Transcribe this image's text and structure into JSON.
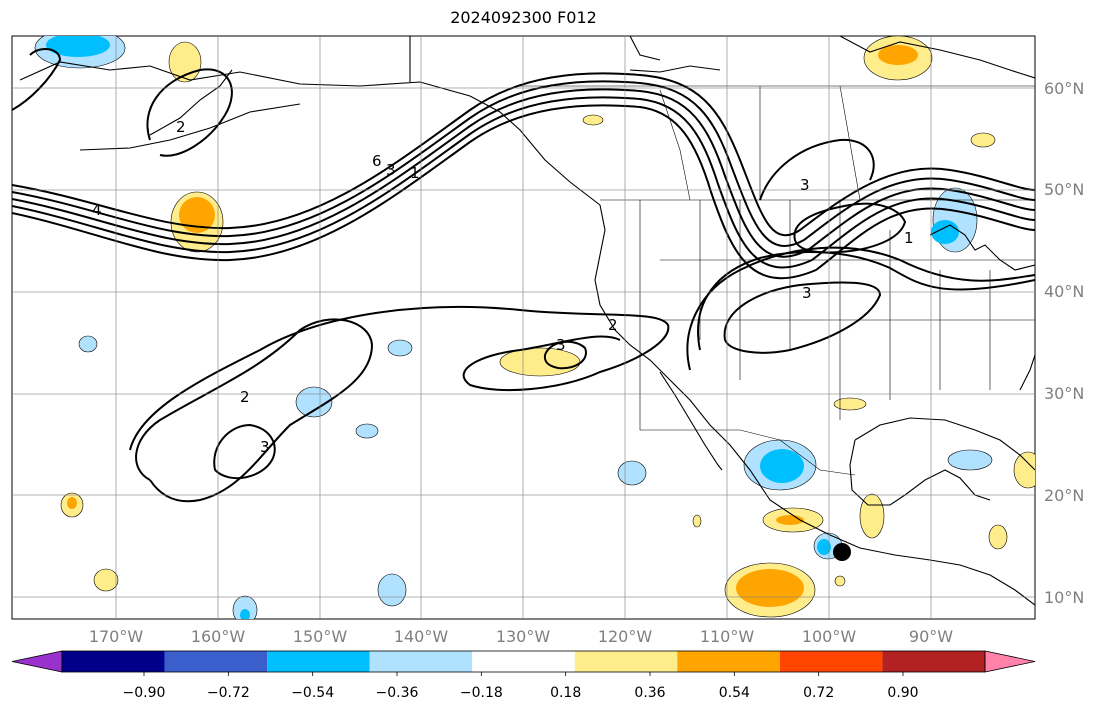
{
  "title": "2024092300 F012",
  "map": {
    "lat_labels": [
      "60°N",
      "50°N",
      "40°N",
      "30°N",
      "20°N",
      "10°N"
    ],
    "lon_labels": [
      "170°W",
      "160°W",
      "150°W",
      "140°W",
      "130°W",
      "120°W",
      "110°W",
      "100°W",
      "90°W"
    ],
    "contour_labels": [
      "4",
      "6",
      "1",
      "3",
      "2",
      "3",
      "2",
      "3",
      "3",
      "2",
      "1",
      "3"
    ],
    "marker": "storm-center-dot"
  },
  "colorbar": {
    "colors": [
      "#9932cc",
      "#00008b",
      "#3a5fcd",
      "#00bfff",
      "#b0e2ff",
      "#ffffff",
      "#ffec8b",
      "#ffa500",
      "#ff4500",
      "#b22222",
      "#ff82ab"
    ],
    "tick_labels": [
      "−0.90",
      "−0.72",
      "−0.54",
      "−0.36",
      "−0.18",
      "0.18",
      "0.36",
      "0.54",
      "0.72",
      "0.90"
    ]
  }
}
